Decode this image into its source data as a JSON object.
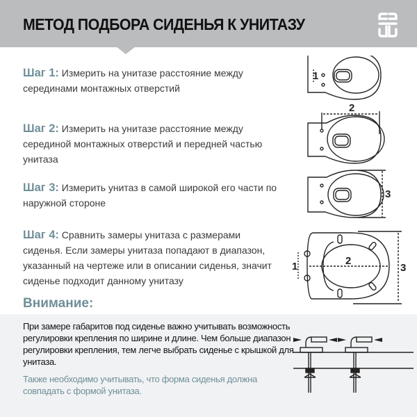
{
  "header": {
    "title": "МЕТОД ПОДБОРА СИДЕНЬЯ К УНИТАЗУ",
    "logo_icon": "brand-logo-icon"
  },
  "steps": [
    {
      "label": "Шаг 1:",
      "text": " Измерить на унитазе расстояние между серединами монтажных отверстий"
    },
    {
      "label": "Шаг 2:",
      "text": " Измерить на унитазе расстояние между серединой монтажных отверстий и передней частью унитаза"
    },
    {
      "label": "Шаг 3:",
      "text": " Измерить унитаз в самой широкой его части по наружной стороне"
    },
    {
      "label": "Шаг 4:",
      "text": " Сравнить замеры унитаза с размерами сиденья. Если замеры унитаза попадают в диапазон, указанный на чертеже или в описании сиденья, значит сиденье подходит данному унитазу"
    }
  ],
  "diagram_labels": {
    "d1": "1",
    "d2": "2",
    "d3": "3"
  },
  "attention": {
    "title": "Внимание:",
    "text": "При замере габаритов под сиденье важно учитывать возможность регулировки крепления по ширине и длине. Чем больше диапазон регулировки крепления,  тем легче выбрать сиденье с крышкой для унитаза.",
    "note": "Также необходимо учитывать, что форма сиденья должна совпадать с формой унитаза."
  },
  "colors": {
    "header": "#bbbcbe",
    "accent": "#6f8f99",
    "box": "#f1f2f4"
  }
}
